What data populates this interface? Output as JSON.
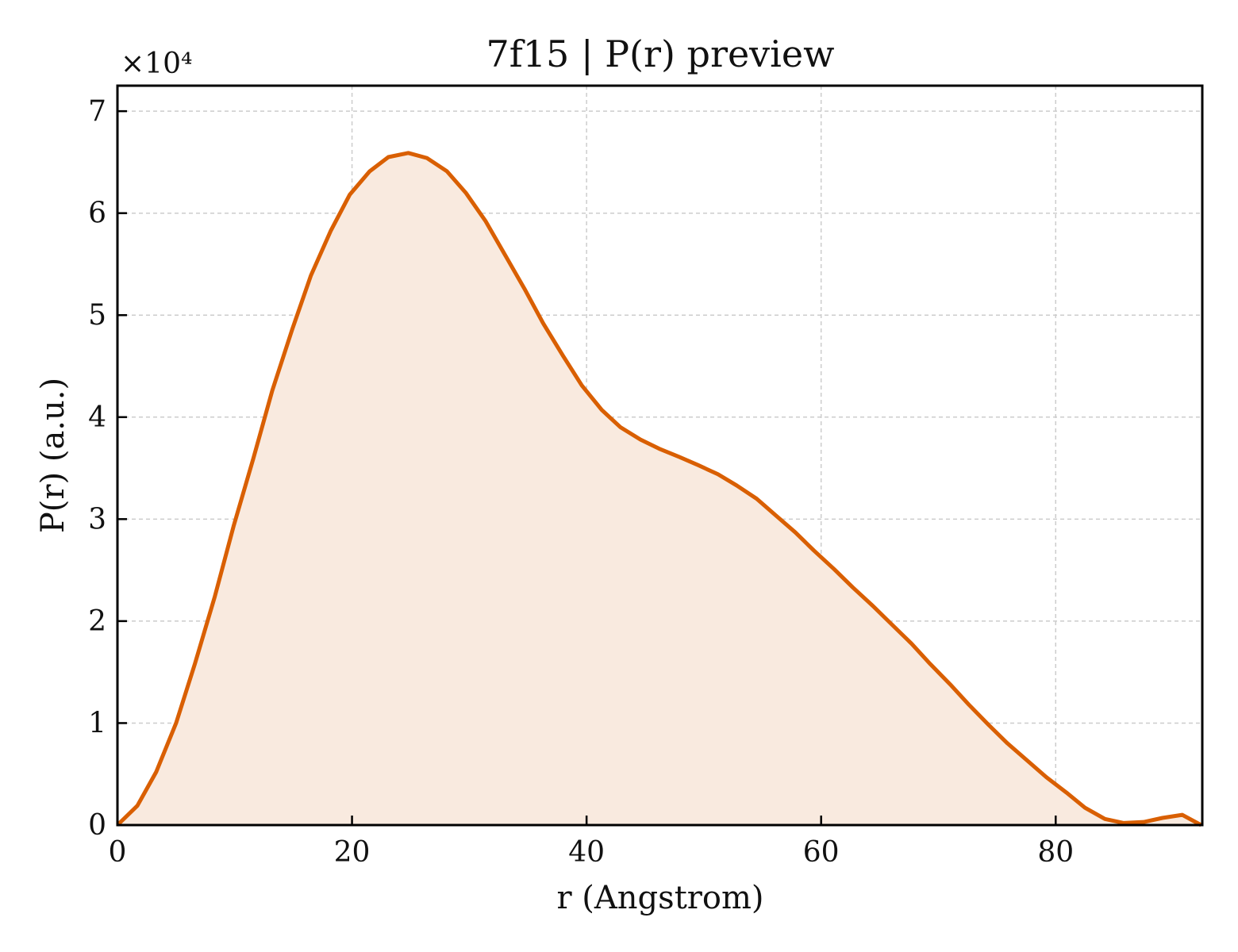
{
  "chart_data": {
    "type": "area",
    "title": "7f15 | P(r) preview",
    "xlabel": "r (Angstrom)",
    "ylabel": "P(r) (a.u.)",
    "y_multiplier_label": "×10⁴",
    "y_scale_factor": 10000,
    "xlim": [
      0,
      92.5
    ],
    "ylim": [
      0,
      72500
    ],
    "x_ticks": [
      0,
      20,
      40,
      60,
      80
    ],
    "y_ticks": [
      0,
      1,
      2,
      3,
      4,
      5,
      6,
      7
    ],
    "grid": true,
    "line_color": "#d95f02",
    "fill_color": "#f9eadf",
    "series": [
      {
        "x": [
          0,
          1.7,
          3.3,
          5.0,
          6.6,
          8.3,
          9.9,
          11.6,
          13.2,
          14.9,
          16.5,
          18.2,
          19.8,
          21.5,
          23.1,
          24.8,
          26.4,
          28.1,
          29.7,
          31.4,
          33.0,
          34.7,
          36.3,
          38.0,
          39.6,
          41.3,
          42.9,
          44.6,
          46.2,
          47.9,
          49.5,
          51.2,
          52.8,
          54.5,
          56.1,
          57.8,
          59.4,
          61.1,
          62.7,
          64.4,
          66.0,
          67.7,
          69.3,
          71.0,
          72.6,
          74.3,
          75.9,
          77.6,
          79.2,
          80.9,
          82.5,
          84.2,
          85.8,
          87.5,
          89.1,
          90.8,
          92.4
        ],
        "y": [
          0,
          1900,
          5200,
          10000,
          15800,
          22400,
          29300,
          36000,
          42600,
          48600,
          53900,
          58300,
          61800,
          64100,
          65500,
          65900,
          65400,
          64100,
          62000,
          59200,
          56000,
          52600,
          49200,
          46000,
          43100,
          40700,
          39000,
          37800,
          36900,
          36100,
          35300,
          34400,
          33300,
          32000,
          30400,
          28700,
          26900,
          25100,
          23300,
          21500,
          19700,
          17800,
          15800,
          13800,
          11800,
          9800,
          8000,
          6300,
          4700,
          3200,
          1700,
          600,
          200,
          300,
          700,
          1000,
          0
        ]
      }
    ]
  }
}
